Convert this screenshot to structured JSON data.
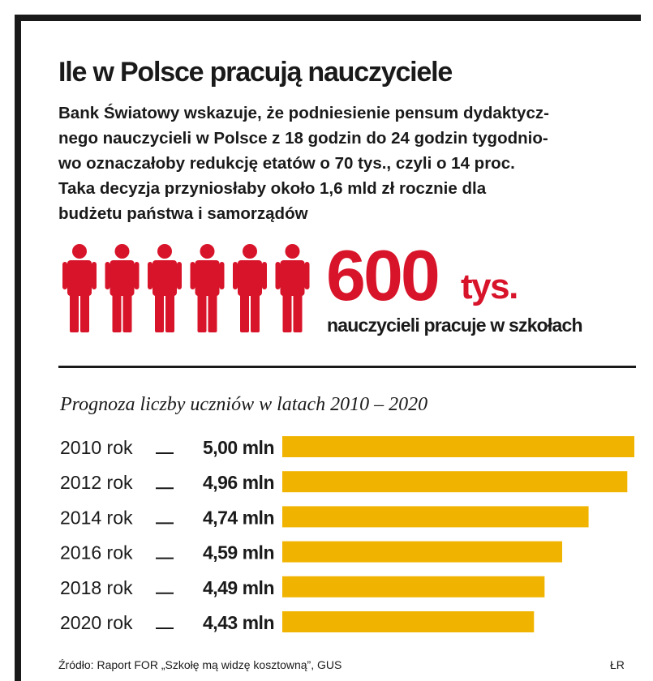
{
  "header": {
    "title": "Ile w Polsce pracują nauczyciele",
    "lead_lines": [
      "Bank Światowy wskazuje, że podniesienie pensum dydaktycz-",
      "nego nauczycieli w Polsce z 18 godzin do 24 godzin tygodnio-",
      "wo oznaczałoby redukcję etatów o 70 tys., czyli o 14 proc.",
      "Taka decyzja przyniosłaby około 1,6 mld zł rocznie dla",
      "budżetu państwa i samorządów"
    ]
  },
  "headline_stat": {
    "number": "600",
    "unit": "tys.",
    "caption": "nauczycieli pracuje w szkołach",
    "figure_count": 6,
    "figure_icon": "person-icon",
    "figure_color": "#d8142a"
  },
  "chart_data": {
    "type": "bar",
    "orientation": "horizontal",
    "title": "Prognoza liczby uczniów w latach 2010 – 2020",
    "categories": [
      "2010 rok",
      "2012 rok",
      "2014 rok",
      "2016 rok",
      "2018 rok",
      "2020 rok"
    ],
    "value_labels": [
      "5,00 mln",
      "4,96 mln",
      "4,74 mln",
      "4,59 mln",
      "4,49 mln",
      "4,43 mln"
    ],
    "values": [
      5.0,
      4.96,
      4.74,
      4.59,
      4.49,
      4.43
    ],
    "unit": "mln",
    "xlim": [
      3.0,
      5.0
    ],
    "bar_color": "#f0b400",
    "grid": false,
    "legend": "none"
  },
  "footer": {
    "source": "Źródło: Raport FOR „Szkołę mą widzę kosztowną”, GUS",
    "author": "ŁR"
  }
}
